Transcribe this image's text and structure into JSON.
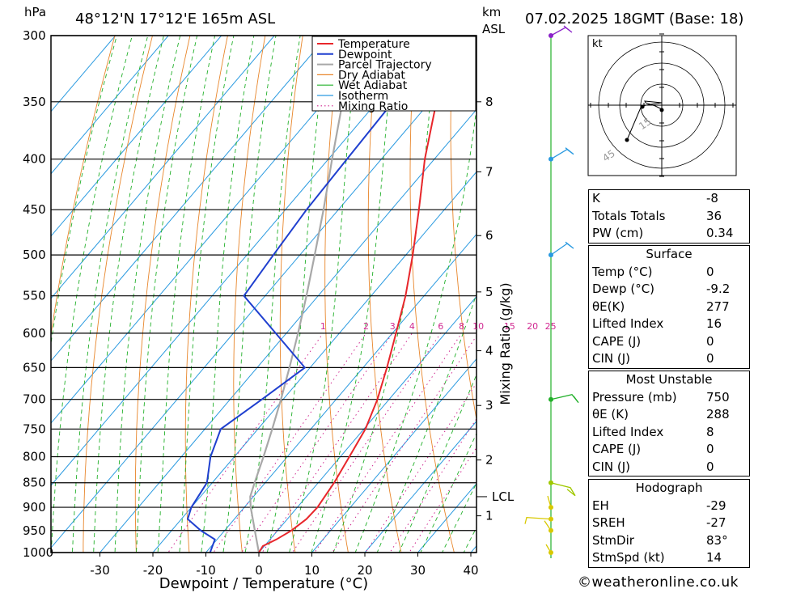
{
  "header": {
    "pressure_unit": "hPa",
    "location": "48°12'N 17°12'E 165m ASL",
    "km_unit": "km",
    "asl_label": "ASL",
    "datetime": "07.02.2025 18GMT (Base: 18)"
  },
  "chart_data": {
    "type": "line",
    "subtype": "skew-T log-p diagram",
    "title": "48°12'N 17°12'E 165m ASL",
    "xlabel": "Dewpoint / Temperature (°C)",
    "ylabel": "hPa",
    "right_axis_label": "Mixing Ratio (g/kg)",
    "x_ticks": [
      -30,
      -20,
      -10,
      0,
      10,
      20,
      30,
      40
    ],
    "pressure_levels": [
      300,
      350,
      400,
      450,
      500,
      550,
      600,
      650,
      700,
      750,
      800,
      850,
      900,
      950,
      1000
    ],
    "km_ticks": [
      {
        "km": "1",
        "p": 918
      },
      {
        "km": "2",
        "p": 806
      },
      {
        "km": "3",
        "p": 710
      },
      {
        "km": "4",
        "p": 625
      },
      {
        "km": "5",
        "p": 545
      },
      {
        "km": "6",
        "p": 478
      },
      {
        "km": "7",
        "p": 412
      },
      {
        "km": "8",
        "p": 350
      }
    ],
    "lcl": {
      "label": "LCL",
      "p": 878
    },
    "mixing_ratio_labels": [
      "1",
      "2",
      "3",
      "4",
      "6",
      "8",
      "10",
      "15",
      "20",
      "25"
    ],
    "legend": [
      "Temperature",
      "Dewpoint",
      "Parcel Trajectory",
      "Dry Adiabat",
      "Wet Adiabat",
      "Isotherm",
      "Mixing Ratio"
    ],
    "legend_position": "top-right",
    "series": [
      {
        "name": "Temperature",
        "color": "#e8262b",
        "points": [
          [
            1000,
            0
          ],
          [
            985,
            -0.3
          ],
          [
            970,
            1.2
          ],
          [
            950,
            2.6
          ],
          [
            925,
            3.6
          ],
          [
            900,
            3.8
          ],
          [
            850,
            3.0
          ],
          [
            800,
            1.7
          ],
          [
            750,
            0.3
          ],
          [
            700,
            -2.2
          ],
          [
            650,
            -5.5
          ],
          [
            600,
            -9.3
          ],
          [
            550,
            -13.5
          ],
          [
            500,
            -18.7
          ],
          [
            450,
            -24.8
          ],
          [
            400,
            -31.8
          ],
          [
            350,
            -38.8
          ],
          [
            300,
            -46.2
          ]
        ]
      },
      {
        "name": "Dewpoint",
        "color": "#1f3fcf",
        "points": [
          [
            1000,
            -9.2
          ],
          [
            970,
            -10.4
          ],
          [
            950,
            -14.5
          ],
          [
            925,
            -18.8
          ],
          [
            900,
            -20.0
          ],
          [
            850,
            -21.0
          ],
          [
            800,
            -24.5
          ],
          [
            750,
            -27.0
          ],
          [
            700,
            -24.0
          ],
          [
            650,
            -21.0
          ],
          [
            600,
            -32.0
          ],
          [
            550,
            -44.0
          ],
          [
            500,
            -45.0
          ],
          [
            450,
            -46.0
          ],
          [
            400,
            -46.5
          ],
          [
            350,
            -47.0
          ],
          [
            300,
            -50.0
          ]
        ]
      },
      {
        "name": "Parcel Trajectory",
        "color": "#a8a8a8",
        "points": [
          [
            1000,
            0
          ],
          [
            950,
            -4.3
          ],
          [
            900,
            -8.8
          ],
          [
            878,
            -10.6
          ],
          [
            850,
            -12.0
          ],
          [
            800,
            -14.5
          ],
          [
            750,
            -17.3
          ],
          [
            700,
            -20.4
          ],
          [
            650,
            -23.9
          ],
          [
            600,
            -27.8
          ],
          [
            550,
            -32.2
          ],
          [
            500,
            -37.2
          ],
          [
            450,
            -42.8
          ],
          [
            400,
            -49.3
          ],
          [
            350,
            -56.5
          ],
          [
            300,
            -64.0
          ]
        ]
      }
    ],
    "wind_barbs": [
      {
        "p": 1000,
        "color": "#d8c800"
      },
      {
        "p": 950,
        "color": "#d8c800"
      },
      {
        "p": 925,
        "color": "#d8c800"
      },
      {
        "p": 900,
        "color": "#d8c800"
      },
      {
        "p": 850,
        "color": "#a0c800"
      },
      {
        "p": 700,
        "color": "#22b02a"
      },
      {
        "p": 500,
        "color": "#2a9ae0"
      },
      {
        "p": 400,
        "color": "#2a9ae0"
      },
      {
        "p": 300,
        "color": "#8a22c8"
      }
    ],
    "grid": true
  },
  "hodograph": {
    "unit": "kt",
    "ring_labels": [
      "15",
      "45"
    ]
  },
  "indices": {
    "rows": [
      {
        "k": "K",
        "v": "-8"
      },
      {
        "k": "Totals Totals",
        "v": "36"
      },
      {
        "k": "PW (cm)",
        "v": "0.34"
      }
    ]
  },
  "surface": {
    "title": "Surface",
    "rows": [
      {
        "k": "Temp (°C)",
        "v": "0"
      },
      {
        "k": "Dewp (°C)",
        "v": "-9.2"
      },
      {
        "k": "θE(K)",
        "v": "277"
      },
      {
        "k": "Lifted Index",
        "v": "16"
      },
      {
        "k": "CAPE (J)",
        "v": "0"
      },
      {
        "k": "CIN (J)",
        "v": "0"
      }
    ]
  },
  "most_unstable": {
    "title": "Most Unstable",
    "rows": [
      {
        "k": "Pressure (mb)",
        "v": "750"
      },
      {
        "k": "θE (K)",
        "v": "288"
      },
      {
        "k": "Lifted Index",
        "v": "8"
      },
      {
        "k": "CAPE (J)",
        "v": "0"
      },
      {
        "k": "CIN (J)",
        "v": "0"
      }
    ]
  },
  "hodograph_table": {
    "title": "Hodograph",
    "rows": [
      {
        "k": "EH",
        "v": "-29"
      },
      {
        "k": "SREH",
        "v": "-27"
      },
      {
        "k": "StmDir",
        "v": "83°"
      },
      {
        "k": "StmSpd (kt)",
        "v": "14"
      }
    ]
  },
  "footer": {
    "copyright": "©weatheronline.co.uk"
  }
}
